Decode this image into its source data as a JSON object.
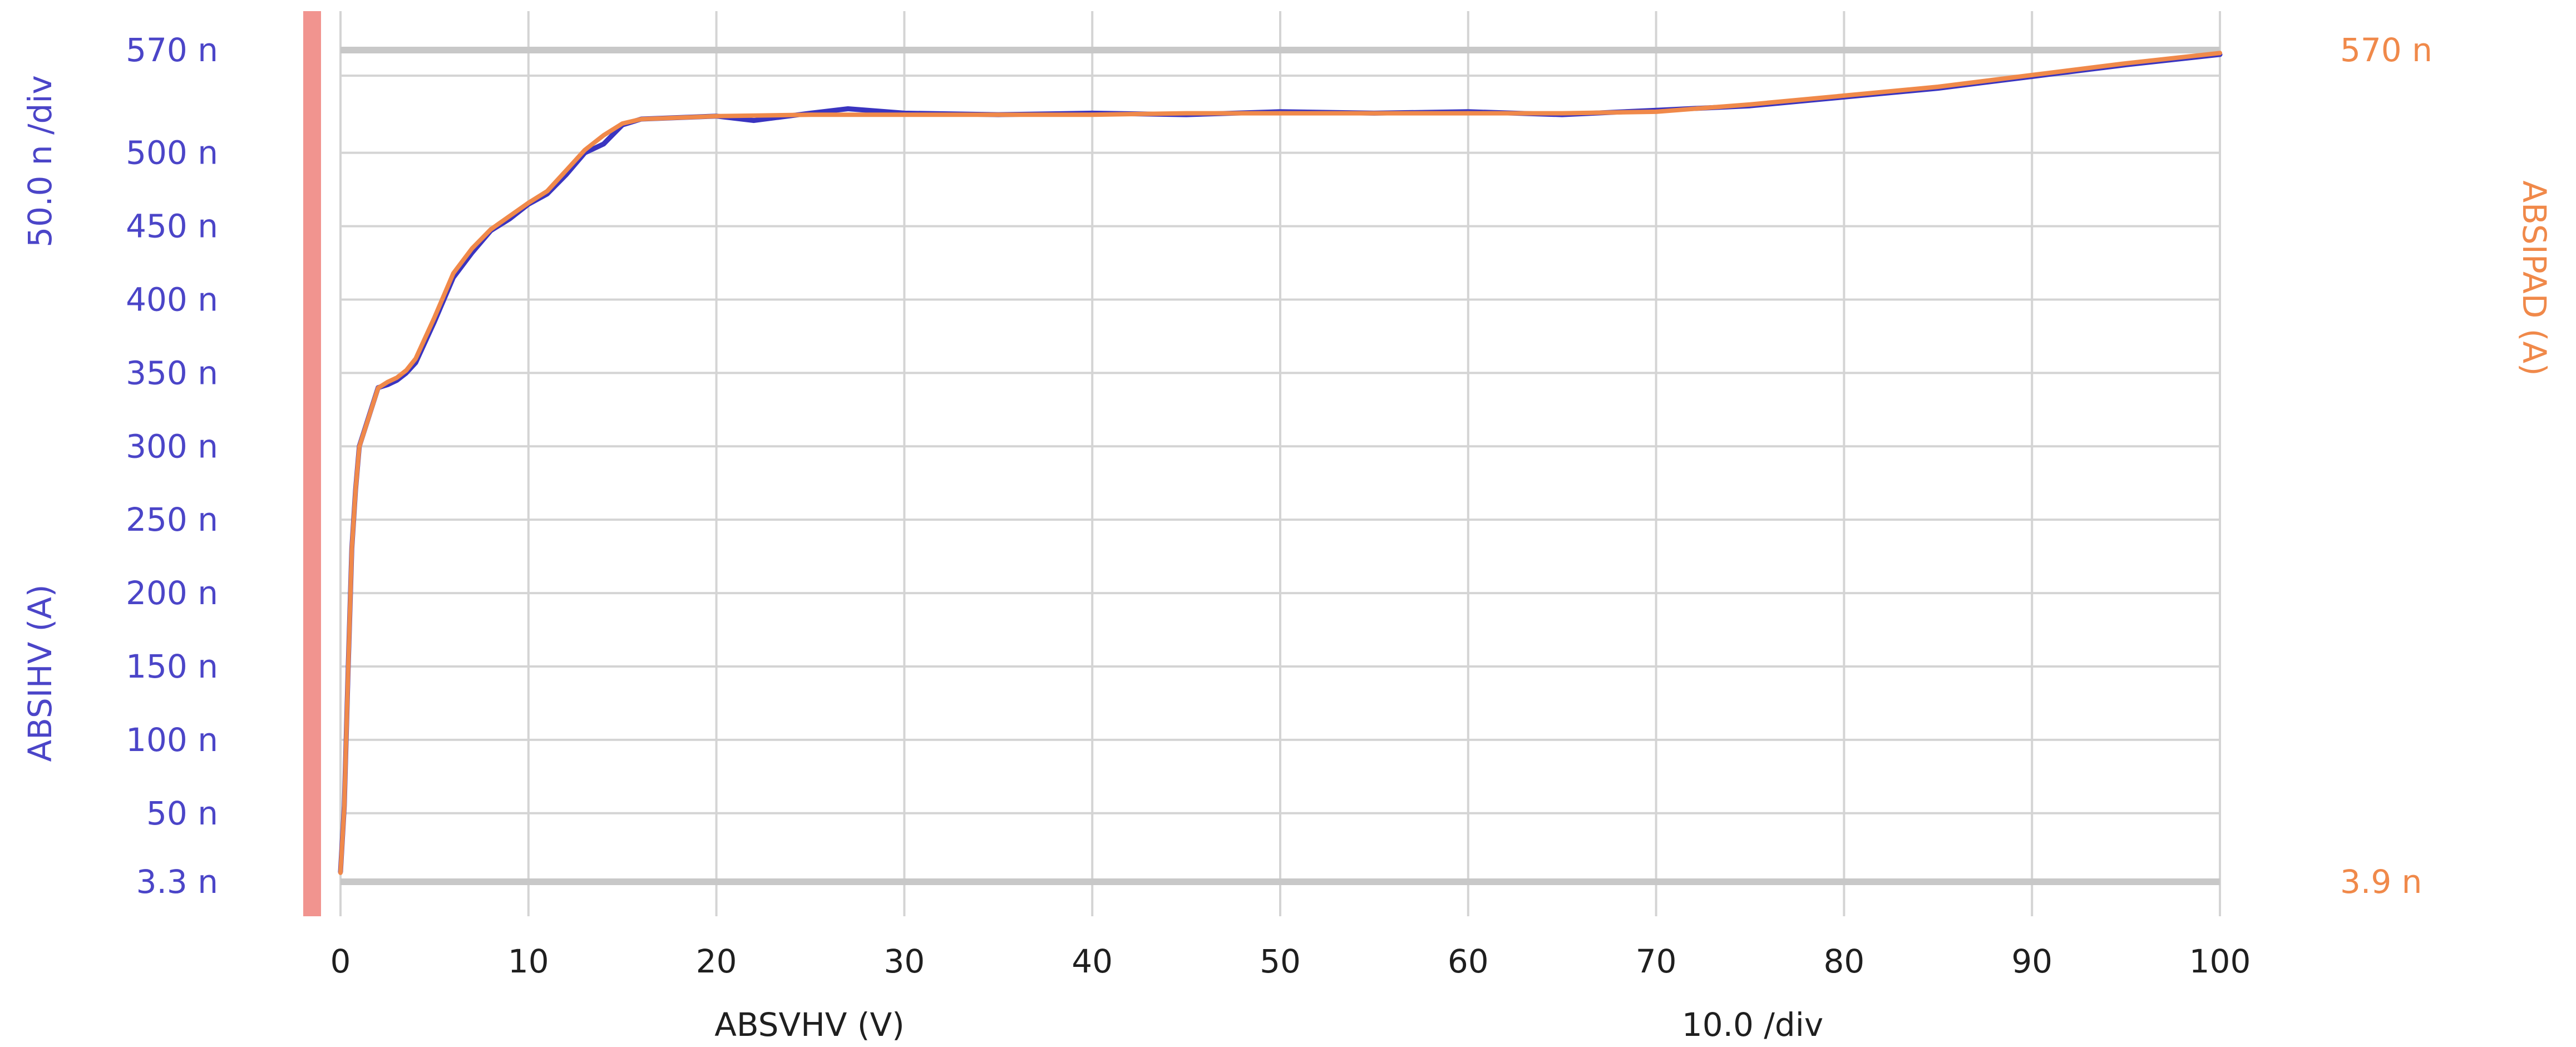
{
  "chart_data": {
    "type": "line",
    "x_label": "ABSVHV (V)",
    "x_div_label": "10.0  /div",
    "x_range": [
      0,
      100
    ],
    "x_ticks": [
      0,
      10,
      20,
      30,
      40,
      50,
      60,
      70,
      80,
      90,
      100
    ],
    "x_tick_labels": [
      "0",
      "10",
      "20",
      "30",
      "40",
      "50",
      "60",
      "70",
      "80",
      "90",
      "100"
    ],
    "left_axis": {
      "label": "ABSIHV (A)",
      "div_label": "50.0 n /div",
      "range": [
        3.3e-09,
        5.7e-07
      ],
      "ticks": [
        3.3e-09,
        5e-08,
        1e-07,
        1.5e-07,
        2e-07,
        2.5e-07,
        3e-07,
        3.5e-07,
        4e-07,
        4.5e-07,
        5e-07,
        5.7e-07
      ],
      "tick_labels": [
        "3.3 n",
        "50 n",
        "100 n",
        "150 n",
        "200 n",
        "250 n",
        "300 n",
        "350 n",
        "400 n",
        "450 n",
        "500 n",
        "570 n"
      ],
      "color": "#4b45c8"
    },
    "right_axis": {
      "label": "ABSIPAD (A)",
      "range": [
        3.9e-09,
        5.7e-07
      ],
      "ticks": [
        3.9e-09,
        5.7e-07
      ],
      "tick_labels": [
        "3.9 n",
        "570 n"
      ],
      "color": "#f0894a"
    },
    "grid": true,
    "series": [
      {
        "name": "ABSIHV",
        "axis": "left",
        "color": "#3a34c0",
        "x": [
          0,
          0.2,
          0.4,
          0.6,
          0.8,
          1,
          1.5,
          2,
          2.5,
          3,
          3.5,
          4,
          5,
          6,
          7,
          8,
          9,
          10,
          11,
          12,
          13,
          14,
          15,
          16,
          18,
          20,
          22,
          25,
          27,
          30,
          35,
          40,
          45,
          50,
          55,
          60,
          65,
          70,
          75,
          80,
          85,
          90,
          95,
          100
        ],
        "y": [
          1e-08,
          5.5e-08,
          1.45e-07,
          2.3e-07,
          2.7e-07,
          3e-07,
          3.2e-07,
          3.4e-07,
          3.42e-07,
          3.45e-07,
          3.5e-07,
          3.57e-07,
          3.85e-07,
          4.15e-07,
          4.32e-07,
          4.47e-07,
          4.55e-07,
          4.65e-07,
          4.72e-07,
          4.85e-07,
          5e-07,
          5.06e-07,
          5.19e-07,
          5.23e-07,
          5.24e-07,
          5.25e-07,
          5.22e-07,
          5.27e-07,
          5.3e-07,
          5.27e-07,
          5.26e-07,
          5.27e-07,
          5.26e-07,
          5.28e-07,
          5.27e-07,
          5.28e-07,
          5.26e-07,
          5.29e-07,
          5.32e-07,
          5.38e-07,
          5.44e-07,
          5.52e-07,
          5.6e-07,
          5.67e-07
        ]
      },
      {
        "name": "ABSIPAD",
        "axis": "right",
        "color": "#f0894a",
        "x": [
          0,
          0.2,
          0.4,
          0.6,
          0.8,
          1,
          1.5,
          2,
          2.5,
          3,
          3.5,
          4,
          5,
          6,
          7,
          8,
          9,
          10,
          11,
          12,
          13,
          14,
          15,
          16,
          18,
          20,
          25,
          30,
          35,
          40,
          45,
          50,
          55,
          60,
          65,
          70,
          75,
          80,
          85,
          90,
          95,
          100
        ],
        "y": [
          1e-08,
          5.5e-08,
          1.45e-07,
          2.3e-07,
          2.7e-07,
          3e-07,
          3.2e-07,
          3.4e-07,
          3.44e-07,
          3.47e-07,
          3.52e-07,
          3.6e-07,
          3.88e-07,
          4.18e-07,
          4.35e-07,
          4.48e-07,
          4.57e-07,
          4.66e-07,
          4.74e-07,
          4.88e-07,
          5.02e-07,
          5.12e-07,
          5.2e-07,
          5.23e-07,
          5.24e-07,
          5.25e-07,
          5.26e-07,
          5.26e-07,
          5.26e-07,
          5.26e-07,
          5.27e-07,
          5.27e-07,
          5.27e-07,
          5.27e-07,
          5.27e-07,
          5.28e-07,
          5.33e-07,
          5.39e-07,
          5.45e-07,
          5.53e-07,
          5.61e-07,
          5.68e-07
        ]
      }
    ],
    "marker_bar_color": "#f1948f"
  }
}
